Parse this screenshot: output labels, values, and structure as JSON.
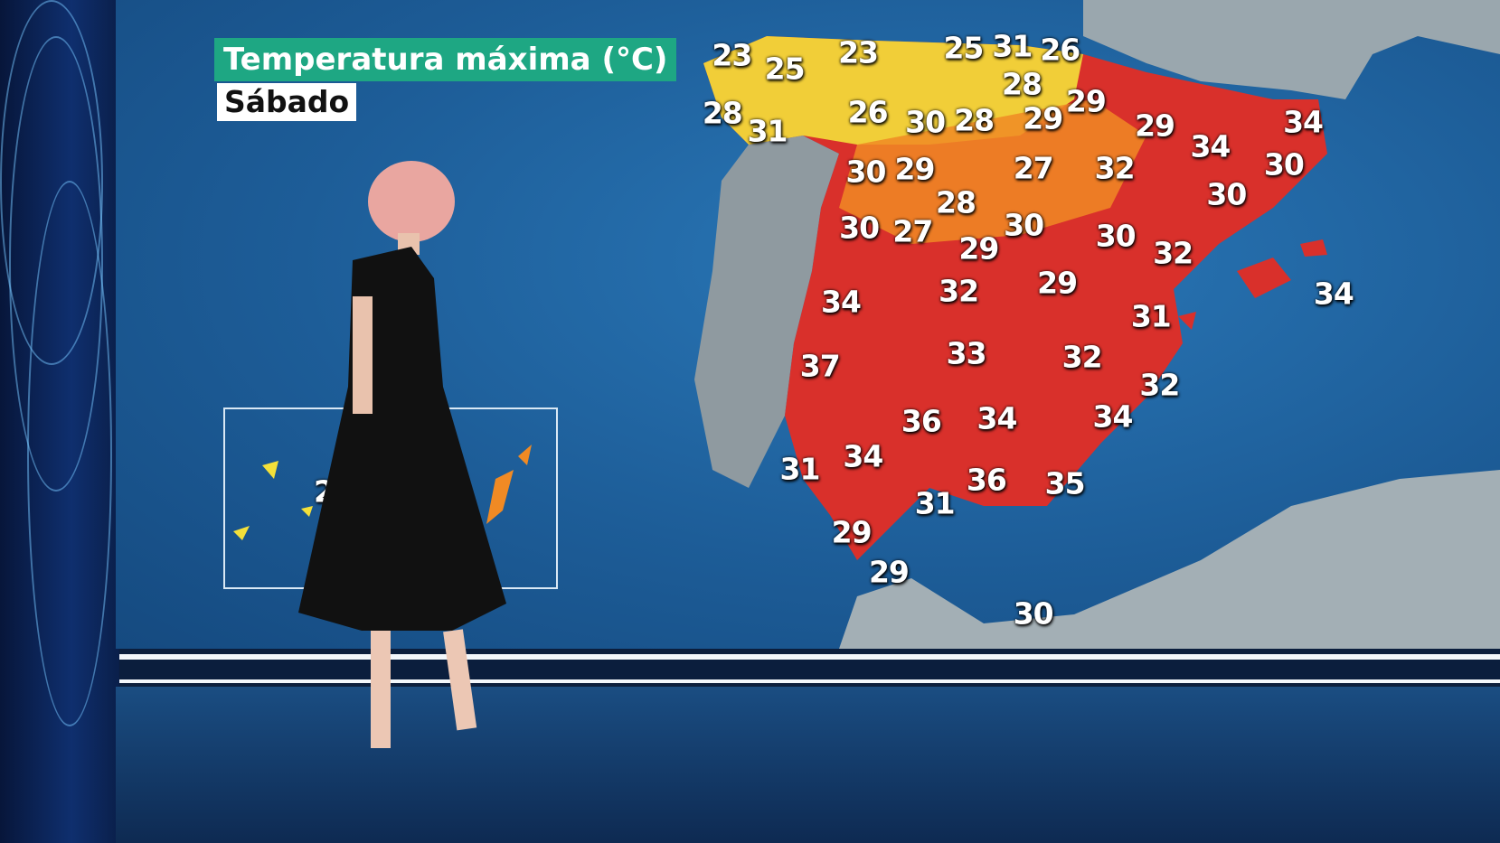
{
  "broadcast": {
    "title": "Temperatura máxima (°C)",
    "day": "Sábado",
    "colors": {
      "title_bg": "#1ea783",
      "day_bg": "#ffffff",
      "hot": "#d9302b",
      "warm": "#f08a24",
      "mild": "#f3e03a",
      "sea": "#1d5d98"
    }
  },
  "map": {
    "region": "Iberian Peninsula, Balearic and Canary Islands",
    "temperatures": [
      23,
      25,
      23,
      25,
      31,
      26,
      28,
      28,
      31,
      26,
      30,
      28,
      29,
      29,
      29,
      34,
      34,
      30,
      30,
      30,
      29,
      27,
      32,
      28,
      30,
      27,
      29,
      30,
      30,
      32,
      34,
      32,
      29,
      31,
      34,
      37,
      33,
      32,
      32,
      36,
      34,
      34,
      31,
      34,
      36,
      35,
      31,
      29,
      29,
      30
    ],
    "canary_partial": "2"
  }
}
